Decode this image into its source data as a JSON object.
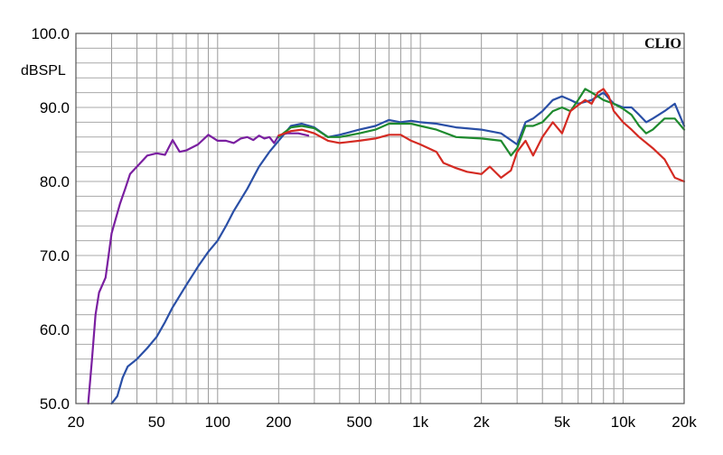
{
  "brand": "CLIO",
  "chart_data": {
    "type": "line",
    "ylabel": "dBSPL",
    "xscale": "log",
    "xlim": [
      20,
      20000
    ],
    "ylim": [
      50,
      100
    ],
    "grid": true,
    "x_ticks": [
      {
        "value": 20,
        "label": "20"
      },
      {
        "value": 50,
        "label": "50"
      },
      {
        "value": 100,
        "label": "100"
      },
      {
        "value": 200,
        "label": "200"
      },
      {
        "value": 500,
        "label": "500"
      },
      {
        "value": 1000,
        "label": "1k"
      },
      {
        "value": 2000,
        "label": "2k"
      },
      {
        "value": 5000,
        "label": "5k"
      },
      {
        "value": 10000,
        "label": "10k"
      },
      {
        "value": 20000,
        "label": "20k"
      }
    ],
    "y_ticks": [
      {
        "value": 100,
        "label": "100.0"
      },
      {
        "value": 90,
        "label": "90.0"
      },
      {
        "value": 80,
        "label": "80.0"
      },
      {
        "value": 70,
        "label": "70.0"
      },
      {
        "value": 60,
        "label": "60.0"
      },
      {
        "value": 50,
        "label": "50.0"
      }
    ],
    "series": [
      {
        "color": "#7a1fa0",
        "points": [
          [
            23,
            50
          ],
          [
            24,
            56
          ],
          [
            25,
            62
          ],
          [
            26,
            65
          ],
          [
            28,
            67
          ],
          [
            30,
            73
          ],
          [
            33,
            77
          ],
          [
            35,
            79
          ],
          [
            37,
            81
          ],
          [
            40,
            82
          ],
          [
            45,
            83.5
          ],
          [
            50,
            83.8
          ],
          [
            55,
            83.6
          ],
          [
            60,
            85.6
          ],
          [
            65,
            84
          ],
          [
            70,
            84.2
          ],
          [
            80,
            85
          ],
          [
            90,
            86.3
          ],
          [
            100,
            85.5
          ],
          [
            110,
            85.5
          ],
          [
            120,
            85.2
          ],
          [
            130,
            85.8
          ],
          [
            140,
            86
          ],
          [
            150,
            85.6
          ],
          [
            160,
            86.2
          ],
          [
            170,
            85.8
          ],
          [
            180,
            86
          ],
          [
            190,
            85.2
          ],
          [
            200,
            86.2
          ],
          [
            220,
            86.5
          ],
          [
            250,
            86.5
          ],
          [
            280,
            86.2
          ]
        ]
      },
      {
        "color": "#2a4fa6",
        "points": [
          [
            30,
            50
          ],
          [
            32,
            51
          ],
          [
            34,
            53.5
          ],
          [
            36,
            55
          ],
          [
            40,
            56
          ],
          [
            45,
            57.5
          ],
          [
            50,
            59
          ],
          [
            55,
            61
          ],
          [
            60,
            63
          ],
          [
            70,
            66
          ],
          [
            80,
            68.5
          ],
          [
            90,
            70.5
          ],
          [
            100,
            72
          ],
          [
            110,
            74
          ],
          [
            120,
            76
          ],
          [
            140,
            79
          ],
          [
            160,
            82
          ],
          [
            180,
            84
          ],
          [
            200,
            85.5
          ],
          [
            230,
            87.5
          ],
          [
            260,
            87.8
          ],
          [
            300,
            87.3
          ],
          [
            350,
            86
          ],
          [
            400,
            86.3
          ],
          [
            500,
            87
          ],
          [
            600,
            87.5
          ],
          [
            700,
            88.3
          ],
          [
            800,
            88
          ],
          [
            900,
            88.2
          ],
          [
            1000,
            88
          ],
          [
            1200,
            87.8
          ],
          [
            1500,
            87.3
          ],
          [
            2000,
            87
          ],
          [
            2500,
            86.5
          ],
          [
            3000,
            85
          ],
          [
            3300,
            88
          ],
          [
            3600,
            88.5
          ],
          [
            4000,
            89.5
          ],
          [
            4500,
            91
          ],
          [
            5000,
            91.5
          ],
          [
            5500,
            91
          ],
          [
            6000,
            90.5
          ],
          [
            7000,
            91
          ],
          [
            8000,
            92
          ],
          [
            9000,
            90.5
          ],
          [
            10000,
            90
          ],
          [
            11000,
            90
          ],
          [
            12000,
            89
          ],
          [
            13000,
            88
          ],
          [
            14000,
            88.5
          ],
          [
            16000,
            89.5
          ],
          [
            18000,
            90.5
          ],
          [
            20000,
            87.5
          ]
        ]
      },
      {
        "color": "#1e8a2e",
        "points": [
          [
            200,
            86
          ],
          [
            230,
            87.3
          ],
          [
            260,
            87.5
          ],
          [
            300,
            87.2
          ],
          [
            350,
            86
          ],
          [
            400,
            86
          ],
          [
            500,
            86.5
          ],
          [
            600,
            87
          ],
          [
            700,
            87.8
          ],
          [
            800,
            87.8
          ],
          [
            900,
            87.8
          ],
          [
            1000,
            87.5
          ],
          [
            1200,
            87
          ],
          [
            1500,
            86
          ],
          [
            2000,
            85.8
          ],
          [
            2500,
            85.5
          ],
          [
            2800,
            83.5
          ],
          [
            3000,
            84.5
          ],
          [
            3300,
            87.5
          ],
          [
            3600,
            87.5
          ],
          [
            4000,
            88
          ],
          [
            4500,
            89.5
          ],
          [
            5000,
            90
          ],
          [
            5500,
            89.5
          ],
          [
            6000,
            91
          ],
          [
            6500,
            92.5
          ],
          [
            7000,
            92
          ],
          [
            7500,
            91.5
          ],
          [
            8000,
            91
          ],
          [
            9000,
            90.5
          ],
          [
            10000,
            89.8
          ],
          [
            11000,
            89
          ],
          [
            12000,
            87.5
          ],
          [
            13000,
            86.5
          ],
          [
            14000,
            87
          ],
          [
            16000,
            88.5
          ],
          [
            18000,
            88.5
          ],
          [
            20000,
            87
          ]
        ]
      },
      {
        "color": "#d42a22",
        "points": [
          [
            200,
            86.2
          ],
          [
            230,
            86.8
          ],
          [
            260,
            87
          ],
          [
            300,
            86.5
          ],
          [
            350,
            85.5
          ],
          [
            400,
            85.2
          ],
          [
            500,
            85.5
          ],
          [
            600,
            85.8
          ],
          [
            700,
            86.3
          ],
          [
            800,
            86.3
          ],
          [
            900,
            85.5
          ],
          [
            1000,
            85
          ],
          [
            1200,
            84
          ],
          [
            1300,
            82.5
          ],
          [
            1500,
            81.8
          ],
          [
            1700,
            81.3
          ],
          [
            2000,
            81
          ],
          [
            2200,
            82
          ],
          [
            2500,
            80.5
          ],
          [
            2800,
            81.5
          ],
          [
            3000,
            84
          ],
          [
            3300,
            85.5
          ],
          [
            3600,
            83.5
          ],
          [
            4000,
            86
          ],
          [
            4500,
            88
          ],
          [
            5000,
            86.5
          ],
          [
            5500,
            89.5
          ],
          [
            6000,
            90.3
          ],
          [
            6500,
            91
          ],
          [
            7000,
            90.5
          ],
          [
            7500,
            92
          ],
          [
            8000,
            92.5
          ],
          [
            8500,
            91.5
          ],
          [
            9000,
            89.5
          ],
          [
            10000,
            88
          ],
          [
            11000,
            87
          ],
          [
            12000,
            86
          ],
          [
            14000,
            84.5
          ],
          [
            16000,
            83
          ],
          [
            18000,
            80.5
          ],
          [
            20000,
            80
          ]
        ]
      }
    ]
  }
}
